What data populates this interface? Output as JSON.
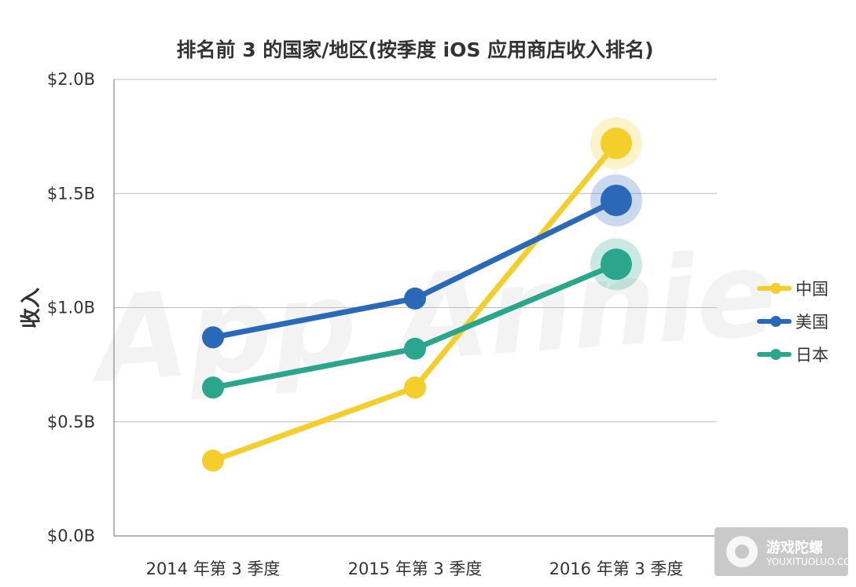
{
  "chart_data": {
    "type": "line",
    "title": "排名前 3 的国家/地区(按季度 iOS 应用商店收入排名)",
    "xlabel": "",
    "ylabel": "收入",
    "categories": [
      "2014 年第 3 季度",
      "2015 年第 3 季度",
      "2016 年第 3 季度"
    ],
    "y_ticks": [
      "$0.0B",
      "$0.5B",
      "$1.0B",
      "$1.5B",
      "$2.0B"
    ],
    "ylim": [
      0,
      2.0
    ],
    "grid": true,
    "legend_position": "right",
    "series": [
      {
        "name": "中国",
        "color": "#f4cf2c",
        "values": [
          0.33,
          0.65,
          1.72
        ]
      },
      {
        "name": "美国",
        "color": "#2a69b8",
        "values": [
          0.87,
          1.04,
          1.47
        ]
      },
      {
        "name": "日本",
        "color": "#2aa68d",
        "values": [
          0.65,
          0.82,
          1.19
        ]
      }
    ]
  },
  "watermark": {
    "background_text": "App Annie",
    "logo_text": "游戏陀螺",
    "logo_subtext": "YOUXITUOLUO.COM"
  }
}
